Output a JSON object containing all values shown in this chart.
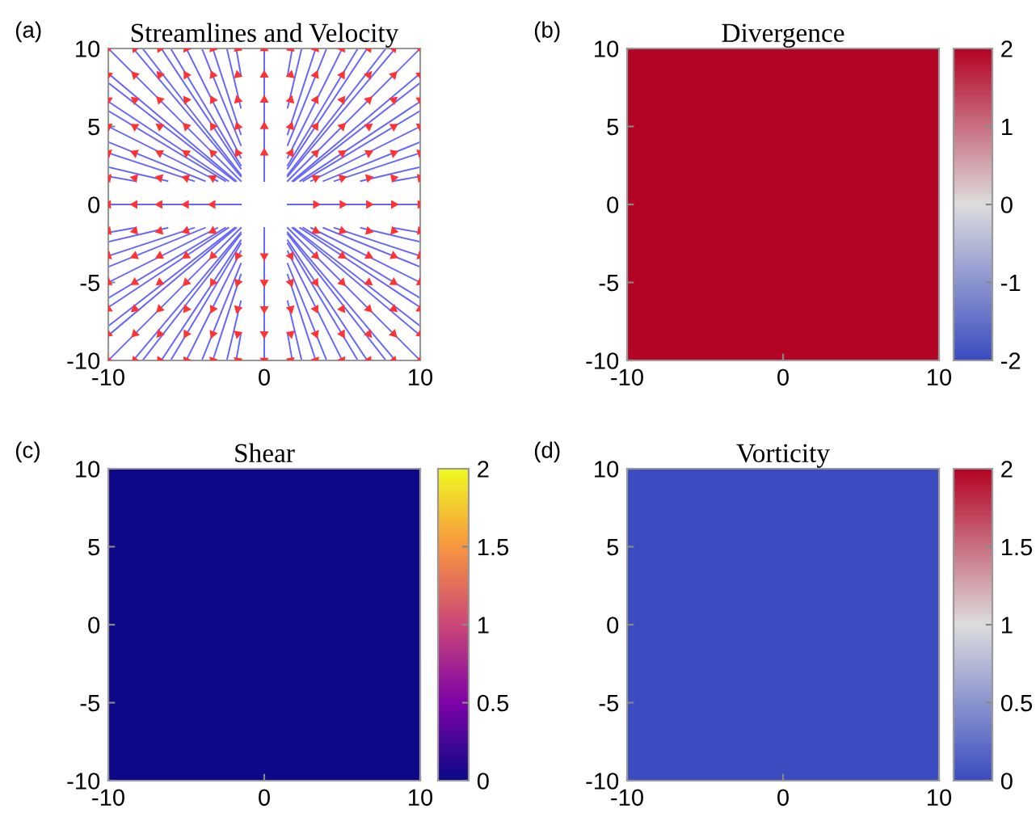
{
  "chart_data": [
    {
      "type": "line",
      "title": "Streamlines and Velocity",
      "annotations": [
        "(a)"
      ],
      "xlim": [
        -10,
        10
      ],
      "ylim": [
        -10,
        10
      ],
      "xticks": [
        -10,
        0,
        10
      ],
      "yticks": [
        -10,
        -5,
        0,
        5,
        10
      ],
      "color": "#6666ff",
      "series": [
        {
          "x": [
            -1.8,
            -10
          ],
          "values": [
            1.5,
            8.4
          ]
        },
        {
          "x": [
            -1.5,
            -8.4
          ],
          "values": [
            1.8,
            10
          ]
        },
        {
          "x": [
            1.8,
            10
          ],
          "values": [
            1.5,
            8.4
          ]
        },
        {
          "x": [
            1.5,
            8.4
          ],
          "values": [
            1.8,
            10
          ]
        },
        {
          "x": [
            -1.8,
            -10
          ],
          "values": [
            -1.5,
            -8.4
          ]
        },
        {
          "x": [
            -1.5,
            -8.4
          ],
          "values": [
            -1.8,
            -10
          ]
        },
        {
          "x": [
            1.8,
            10
          ],
          "values": [
            -1.5,
            -8.4
          ]
        },
        {
          "x": [
            1.5,
            8.4
          ],
          "values": [
            -1.8,
            -10
          ]
        },
        {
          "x": [
            -1.9,
            -10
          ],
          "values": [
            1.5,
            7.8
          ]
        },
        {
          "x": [
            -1.5,
            -7.8
          ],
          "values": [
            1.9,
            10
          ]
        },
        {
          "x": [
            1.9,
            10
          ],
          "values": [
            1.5,
            7.8
          ]
        },
        {
          "x": [
            1.5,
            7.8
          ],
          "values": [
            1.9,
            10
          ]
        },
        {
          "x": [
            -1.9,
            -10
          ],
          "values": [
            -1.5,
            -7.8
          ]
        },
        {
          "x": [
            -1.5,
            -7.8
          ],
          "values": [
            -1.9,
            -10
          ]
        },
        {
          "x": [
            1.9,
            10
          ],
          "values": [
            -1.5,
            -7.8
          ]
        },
        {
          "x": [
            1.5,
            7.8
          ],
          "values": [
            -1.9,
            -10
          ]
        },
        {
          "x": [
            -2.3,
            -10
          ],
          "values": [
            1.5,
            6.6
          ]
        },
        {
          "x": [
            -1.5,
            -6.6
          ],
          "values": [
            2.3,
            10
          ]
        },
        {
          "x": [
            2.3,
            10
          ],
          "values": [
            1.5,
            6.6
          ]
        },
        {
          "x": [
            1.5,
            6.6
          ],
          "values": [
            2.3,
            10
          ]
        },
        {
          "x": [
            -2.3,
            -10
          ],
          "values": [
            -1.5,
            -6.6
          ]
        },
        {
          "x": [
            -1.5,
            -6.6
          ],
          "values": [
            -2.3,
            -10
          ]
        },
        {
          "x": [
            2.3,
            10
          ],
          "values": [
            -1.5,
            -6.6
          ]
        },
        {
          "x": [
            1.5,
            6.6
          ],
          "values": [
            -2.3,
            -10
          ]
        },
        {
          "x": [
            -2.5,
            -10
          ],
          "values": [
            1.5,
            6
          ]
        },
        {
          "x": [
            -1.5,
            -6
          ],
          "values": [
            2.5,
            10
          ]
        },
        {
          "x": [
            2.5,
            10
          ],
          "values": [
            1.5,
            6
          ]
        },
        {
          "x": [
            1.5,
            6
          ],
          "values": [
            2.5,
            10
          ]
        },
        {
          "x": [
            -2.5,
            -10
          ],
          "values": [
            -1.5,
            -6
          ]
        },
        {
          "x": [
            -1.5,
            -6
          ],
          "values": [
            -2.5,
            -10
          ]
        },
        {
          "x": [
            2.5,
            10
          ],
          "values": [
            -1.5,
            -6
          ]
        },
        {
          "x": [
            1.5,
            6
          ],
          "values": [
            -2.5,
            -10
          ]
        },
        {
          "x": [
            -3,
            -10
          ],
          "values": [
            1.5,
            5
          ]
        },
        {
          "x": [
            -1.5,
            -5
          ],
          "values": [
            3,
            10
          ]
        },
        {
          "x": [
            3,
            10
          ],
          "values": [
            1.5,
            5
          ]
        },
        {
          "x": [
            1.5,
            5
          ],
          "values": [
            3,
            10
          ]
        },
        {
          "x": [
            -3,
            -10
          ],
          "values": [
            -1.5,
            -5
          ]
        },
        {
          "x": [
            -1.5,
            -5
          ],
          "values": [
            -3,
            -10
          ]
        },
        {
          "x": [
            3,
            10
          ],
          "values": [
            -1.5,
            -5
          ]
        },
        {
          "x": [
            1.5,
            5
          ],
          "values": [
            -3,
            -10
          ]
        },
        {
          "x": [
            -3.8,
            -10
          ],
          "values": [
            1.5,
            4
          ]
        },
        {
          "x": [
            -1.5,
            -4
          ],
          "values": [
            3.8,
            10
          ]
        },
        {
          "x": [
            3.8,
            10
          ],
          "values": [
            1.5,
            4
          ]
        },
        {
          "x": [
            1.5,
            4
          ],
          "values": [
            3.8,
            10
          ]
        },
        {
          "x": [
            -3.8,
            -10
          ],
          "values": [
            -1.5,
            -4
          ]
        },
        {
          "x": [
            -1.5,
            -4
          ],
          "values": [
            -3.8,
            -10
          ]
        },
        {
          "x": [
            3.8,
            10
          ],
          "values": [
            -1.5,
            -4
          ]
        },
        {
          "x": [
            1.5,
            4
          ],
          "values": [
            -3.8,
            -10
          ]
        },
        {
          "x": [
            -4.5,
            -10
          ],
          "values": [
            1.5,
            3.3
          ]
        },
        {
          "x": [
            -1.5,
            -3.3
          ],
          "values": [
            4.5,
            10
          ]
        },
        {
          "x": [
            4.5,
            10
          ],
          "values": [
            1.5,
            3.3
          ]
        },
        {
          "x": [
            1.5,
            3.3
          ],
          "values": [
            4.5,
            10
          ]
        },
        {
          "x": [
            -4.5,
            -10
          ],
          "values": [
            -1.5,
            -3.3
          ]
        },
        {
          "x": [
            -1.5,
            -3.3
          ],
          "values": [
            -4.5,
            -10
          ]
        },
        {
          "x": [
            4.5,
            10
          ],
          "values": [
            -1.5,
            -3.3
          ]
        },
        {
          "x": [
            1.5,
            3.3
          ],
          "values": [
            -4.5,
            -10
          ]
        },
        {
          "x": [
            -6.2,
            -10
          ],
          "values": [
            1.5,
            2.4
          ]
        },
        {
          "x": [
            -1.5,
            -2.4
          ],
          "values": [
            6.2,
            10
          ]
        },
        {
          "x": [
            6.2,
            10
          ],
          "values": [
            1.5,
            2.4
          ]
        },
        {
          "x": [
            1.5,
            2.4
          ],
          "values": [
            6.2,
            10
          ]
        },
        {
          "x": [
            -6.2,
            -10
          ],
          "values": [
            -1.5,
            -2.4
          ]
        },
        {
          "x": [
            -1.5,
            -2.4
          ],
          "values": [
            -6.2,
            -10
          ]
        },
        {
          "x": [
            6.2,
            10
          ],
          "values": [
            -1.5,
            -2.4
          ]
        },
        {
          "x": [
            1.5,
            2.4
          ],
          "values": [
            -6.2,
            -10
          ]
        },
        {
          "x": [
            -8.3,
            -10
          ],
          "values": [
            1.5,
            1.8
          ]
        },
        {
          "x": [
            -1.5,
            -1.8
          ],
          "values": [
            8.3,
            10
          ]
        },
        {
          "x": [
            8.3,
            10
          ],
          "values": [
            1.5,
            1.8
          ]
        },
        {
          "x": [
            1.5,
            1.8
          ],
          "values": [
            8.3,
            10
          ]
        },
        {
          "x": [
            -8.3,
            -10
          ],
          "values": [
            -1.5,
            -1.8
          ]
        },
        {
          "x": [
            -1.5,
            -1.8
          ],
          "values": [
            -8.3,
            -10
          ]
        },
        {
          "x": [
            8.3,
            10
          ],
          "values": [
            -1.5,
            -1.8
          ]
        },
        {
          "x": [
            1.5,
            1.8
          ],
          "values": [
            -8.3,
            -10
          ]
        },
        {
          "x": [
            -1.5,
            -10
          ],
          "values": [
            1.5,
            10
          ]
        },
        {
          "x": [
            1.5,
            10
          ],
          "values": [
            1.5,
            10
          ]
        },
        {
          "x": [
            -1.5,
            -10
          ],
          "values": [
            -1.5,
            -10
          ]
        },
        {
          "x": [
            1.5,
            10
          ],
          "values": [
            -1.5,
            -10
          ]
        },
        {
          "x": [
            0,
            0
          ],
          "values": [
            1.5,
            10
          ]
        },
        {
          "x": [
            0,
            0
          ],
          "values": [
            -1.5,
            -10
          ]
        },
        {
          "x": [
            -1.5,
            -10
          ],
          "values": [
            0,
            0
          ]
        },
        {
          "x": [
            1.5,
            10
          ],
          "values": [
            0,
            0
          ]
        },
        {
          "type": "scatter",
          "color": "#ff3333",
          "marker": "triangle",
          "x": [
            -10,
            -8.3,
            -6.7,
            -5,
            -3.3,
            -1.7,
            0,
            1.7,
            3.3,
            5,
            6.7,
            8.3,
            10,
            -10,
            -8.3,
            -6.7,
            -5,
            -3.3,
            -1.7,
            0,
            1.7,
            3.3,
            5,
            6.7,
            8.3,
            10,
            -10,
            -8.3,
            -6.7,
            -5,
            -3.3,
            -1.7,
            0,
            1.7,
            3.3,
            5,
            6.7,
            8.3,
            10,
            -10,
            -8.3,
            -6.7,
            -5,
            -3.3,
            -1.7,
            0,
            1.7,
            3.3,
            5,
            6.7,
            8.3,
            10,
            -10,
            -8.3,
            -6.7,
            -5,
            -3.3,
            -1.7,
            0,
            1.7,
            3.3,
            5,
            6.7,
            8.3,
            10,
            -10,
            -8.3,
            -6.7,
            -5,
            -3.3,
            3.3,
            5,
            6.7,
            8.3,
            10,
            -10,
            -8.3,
            -6.7,
            -5,
            -3.3,
            3.3,
            5,
            6.7,
            8.3,
            10,
            -10,
            -8.3,
            -6.7,
            -5,
            -3.3,
            3.3,
            5,
            6.7,
            8.3,
            10,
            -10,
            -8.3,
            -6.7,
            -5,
            -3.3,
            -1.7,
            0,
            1.7,
            3.3,
            5,
            6.7,
            8.3,
            10,
            -10,
            -8.3,
            -6.7,
            -5,
            -3.3,
            -1.7,
            0,
            1.7,
            3.3,
            5,
            6.7,
            8.3,
            10,
            -10,
            -8.3,
            -6.7,
            -5,
            -3.3,
            -1.7,
            0,
            1.7,
            3.3,
            5,
            6.7,
            8.3,
            10,
            -10,
            -8.3,
            -6.7,
            -5,
            -3.3,
            -1.7,
            0,
            1.7,
            3.3,
            5,
            6.7,
            8.3,
            10,
            -10,
            -8.3,
            -6.7,
            -5,
            -3.3,
            -1.7,
            0,
            1.7,
            3.3,
            5,
            6.7,
            8.3,
            10
          ],
          "values": [
            10,
            10,
            10,
            10,
            10,
            10,
            10,
            10,
            10,
            10,
            10,
            10,
            10,
            8.3,
            8.3,
            8.3,
            8.3,
            8.3,
            8.3,
            8.3,
            8.3,
            8.3,
            8.3,
            8.3,
            8.3,
            8.3,
            6.7,
            6.7,
            6.7,
            6.7,
            6.7,
            6.7,
            6.7,
            6.7,
            6.7,
            6.7,
            6.7,
            6.7,
            6.7,
            5,
            5,
            5,
            5,
            5,
            5,
            5,
            5,
            5,
            5,
            5,
            5,
            5,
            3.3,
            3.3,
            3.3,
            3.3,
            3.3,
            3.3,
            3.3,
            3.3,
            3.3,
            3.3,
            3.3,
            3.3,
            3.3,
            1.7,
            1.7,
            1.7,
            1.7,
            1.7,
            1.7,
            1.7,
            1.7,
            1.7,
            1.7,
            0,
            0,
            0,
            0,
            0,
            0,
            0,
            0,
            0,
            0,
            -1.7,
            -1.7,
            -1.7,
            -1.7,
            -1.7,
            -1.7,
            -1.7,
            -1.7,
            -1.7,
            -1.7,
            -3.3,
            -3.3,
            -3.3,
            -3.3,
            -3.3,
            -3.3,
            -3.3,
            -3.3,
            -3.3,
            -3.3,
            -3.3,
            -3.3,
            -3.3,
            -5,
            -5,
            -5,
            -5,
            -5,
            -5,
            -5,
            -5,
            -5,
            -5,
            -5,
            -5,
            -5,
            -6.7,
            -6.7,
            -6.7,
            -6.7,
            -6.7,
            -6.7,
            -6.7,
            -6.7,
            -6.7,
            -6.7,
            -6.7,
            -6.7,
            -6.7,
            -8.3,
            -8.3,
            -8.3,
            -8.3,
            -8.3,
            -8.3,
            -8.3,
            -8.3,
            -8.3,
            -8.3,
            -8.3,
            -8.3,
            -8.3,
            -10,
            -10,
            -10,
            -10,
            -10,
            -10,
            -10,
            -10,
            -10,
            -10,
            -10,
            -10,
            -10
          ]
        }
      ]
    },
    {
      "type": "heatmap",
      "title": "Divergence",
      "annotations": [
        "(b)"
      ],
      "xlim": [
        -10,
        10
      ],
      "ylim": [
        -10,
        10
      ],
      "xticks": [
        -10,
        0,
        10
      ],
      "yticks": [
        -10,
        -5,
        0,
        5,
        10
      ],
      "cells": [
        [
          2
        ]
      ],
      "clim": [
        -2,
        2
      ],
      "cticks": [
        -2,
        -1,
        0,
        1,
        2
      ],
      "colors": [
        "#3b4cc0",
        "#dddddd",
        "#b40426"
      ]
    },
    {
      "type": "heatmap",
      "title": "Shear",
      "annotations": [
        "(c)"
      ],
      "xlim": [
        -10,
        10
      ],
      "ylim": [
        -10,
        10
      ],
      "xticks": [
        -10,
        0,
        10
      ],
      "yticks": [
        -10,
        -5,
        0,
        5,
        10
      ],
      "cells": [
        [
          0
        ]
      ],
      "clim": [
        0,
        2
      ],
      "cticks": [
        0,
        0.5,
        1,
        1.5,
        2
      ],
      "colors": [
        "#0d0887",
        "#7e03a8",
        "#cc4778",
        "#f89540",
        "#f0f921"
      ]
    },
    {
      "type": "heatmap",
      "title": "Vorticity",
      "annotations": [
        "(d)"
      ],
      "xlim": [
        -10,
        10
      ],
      "ylim": [
        -10,
        10
      ],
      "xticks": [
        -10,
        0,
        10
      ],
      "yticks": [
        -10,
        -5,
        0,
        5,
        10
      ],
      "cells": [
        [
          0
        ]
      ],
      "clim": [
        0,
        2
      ],
      "cticks": [
        0,
        0.5,
        1,
        1.5,
        2
      ],
      "colors": [
        "#3b4cc0",
        "#dddddd",
        "#b40426"
      ]
    }
  ]
}
